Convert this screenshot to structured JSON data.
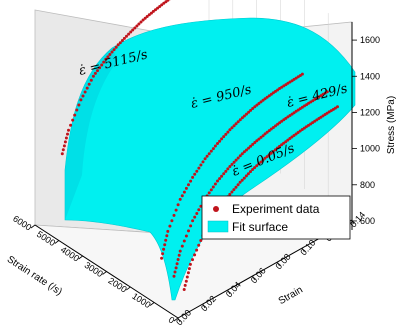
{
  "chart_data": {
    "type": "3d-surface-scatter",
    "x_axis": {
      "label": "Strain",
      "min": 0,
      "max": 0.14,
      "ticks": [
        "0.00",
        "0.02",
        "0.04",
        "0.06",
        "0.08",
        "0.10",
        "0.12",
        "0.14"
      ]
    },
    "y_axis": {
      "label": "Strain rate (/s)",
      "min": 0,
      "max": 6000,
      "ticks": [
        "0",
        "1000",
        "2000",
        "3000",
        "4000",
        "5000",
        "6000"
      ]
    },
    "z_axis": {
      "label": "Stress (MPa)",
      "min": 550,
      "max": 1700,
      "ticks": [
        "600",
        "800",
        "1000",
        "1200",
        "1400",
        "1600"
      ]
    },
    "series": [
      {
        "name": "Experiment data",
        "type": "scatter",
        "color": "#c0141c",
        "curves": [
          {
            "annotation": "ε̇ = 5115/s",
            "rate": 5115,
            "strain": [
              0.005,
              0.01,
              0.02,
              0.03,
              0.04,
              0.05,
              0.06,
              0.07,
              0.08,
              0.09,
              0.1
            ],
            "stress": [
              1040,
              1160,
              1300,
              1400,
              1460,
              1505,
              1540,
              1570,
              1590,
              1605,
              1615
            ]
          },
          {
            "annotation": "ε̇ = 950/s",
            "rate": 950,
            "strain": [
              0.005,
              0.01,
              0.02,
              0.03,
              0.04,
              0.05,
              0.06,
              0.07,
              0.08,
              0.09,
              0.1,
              0.11,
              0.12
            ],
            "stress": [
              800,
              940,
              1090,
              1180,
              1250,
              1300,
              1340,
              1370,
              1395,
              1410,
              1420,
              1425,
              1430
            ]
          },
          {
            "annotation": "ε̇ = 429/s",
            "rate": 429,
            "strain": [
              0.005,
              0.01,
              0.02,
              0.03,
              0.04,
              0.05,
              0.06,
              0.07,
              0.08,
              0.09,
              0.1,
              0.11,
              0.12,
              0.13
            ],
            "stress": [
              740,
              870,
              1010,
              1100,
              1165,
              1210,
              1245,
              1270,
              1290,
              1305,
              1315,
              1322,
              1327,
              1330
            ]
          },
          {
            "annotation": "ε̇ = 0.05/s",
            "rate": 0.05,
            "strain": [
              0.005,
              0.01,
              0.02,
              0.03,
              0.04,
              0.05,
              0.06,
              0.07,
              0.08,
              0.09,
              0.1,
              0.11,
              0.12,
              0.13
            ],
            "stress": [
              700,
              830,
              960,
              1050,
              1110,
              1155,
              1190,
              1215,
              1235,
              1250,
              1262,
              1270,
              1276,
              1280
            ]
          }
        ]
      },
      {
        "name": "Fit surface",
        "type": "surface",
        "color": "#00f0f0"
      }
    ],
    "legend": {
      "placement": "bottom-right",
      "entries": [
        "Experiment data",
        "Fit surface"
      ]
    }
  }
}
